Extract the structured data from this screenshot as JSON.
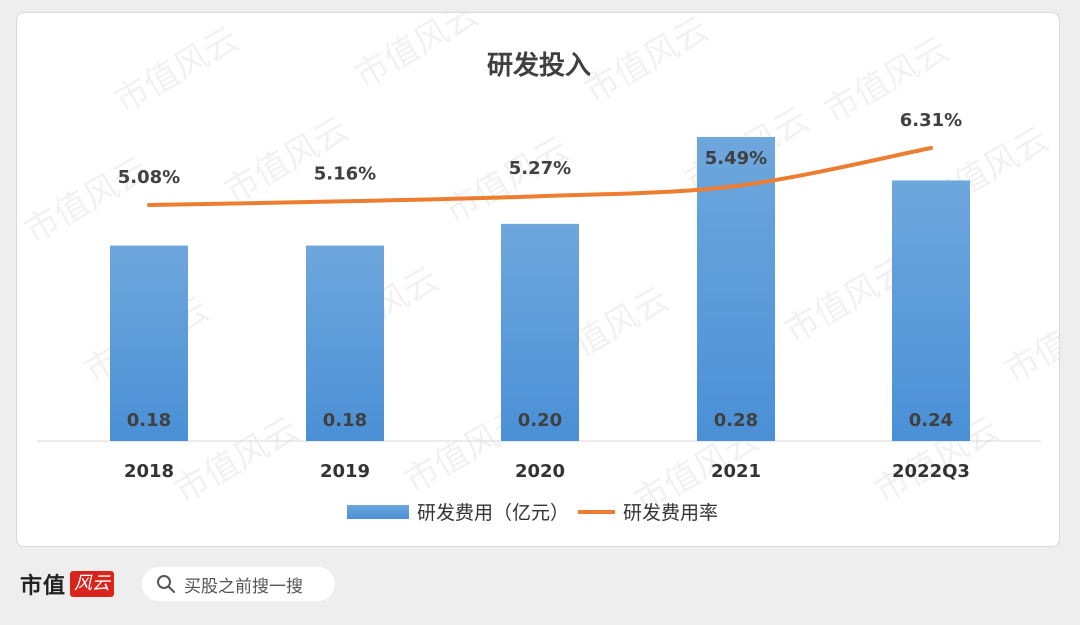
{
  "chart_data": {
    "type": "bar",
    "title": "研发投入",
    "categories": [
      "2018",
      "2019",
      "2020",
      "2021",
      "2022Q3"
    ],
    "series": [
      {
        "name": "研发费用（亿元）",
        "kind": "bar",
        "values": [
          0.18,
          0.18,
          0.2,
          0.28,
          0.24
        ],
        "labels": [
          "0.18",
          "0.18",
          "0.20",
          "0.28",
          "0.24"
        ],
        "color": "#5b9bd5"
      },
      {
        "name": "研发费用率",
        "kind": "line",
        "values": [
          5.08,
          5.16,
          5.27,
          5.49,
          6.31
        ],
        "labels": [
          "5.08%",
          "5.16%",
          "5.27%",
          "5.49%",
          "6.31%"
        ],
        "color": "#ed7d31"
      }
    ],
    "legend_position": "bottom",
    "grid": false
  },
  "footer": {
    "brand": "市值",
    "brand_badge": "风云",
    "search_text": "买股之前搜一搜",
    "search_icon": "search-icon"
  },
  "watermark": "市值风云"
}
